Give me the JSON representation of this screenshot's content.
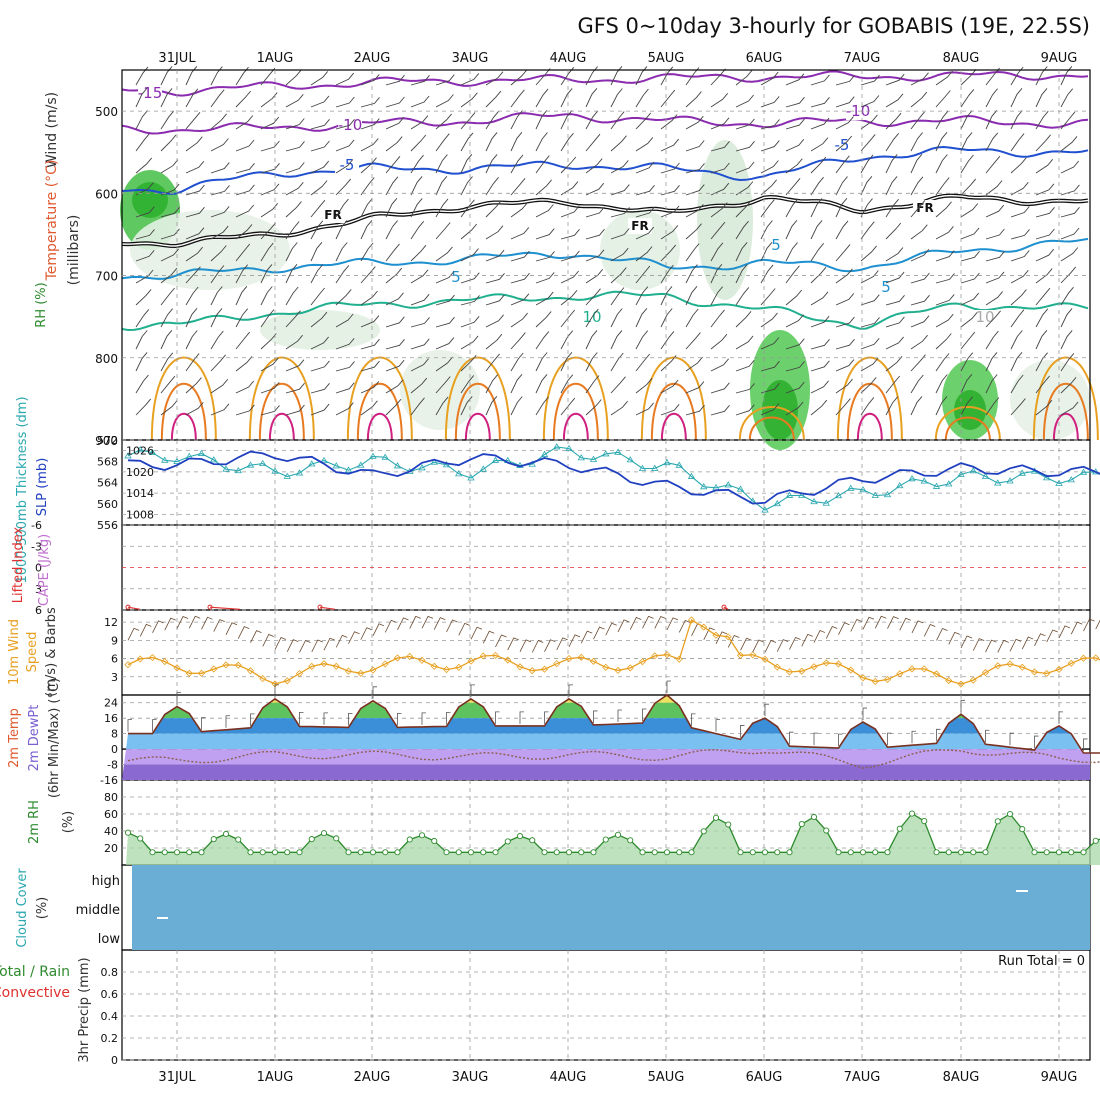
{
  "title": "GFS 0~10day 3-hourly for GOBABIS (19E, 22.5S)",
  "dates": [
    "31JUL",
    "1AUG",
    "2AUG",
    "3AUG",
    "4AUG",
    "5AUG",
    "6AUG",
    "7AUG",
    "8AUG",
    "9AUG"
  ],
  "panels": {
    "upper": {
      "labels": [
        "RH (%)",
        "Temperature (°C)",
        "Wind (m/s)"
      ],
      "label_colors": [
        "#2e8b2e",
        "#e05a30",
        "#333333"
      ],
      "ylabel": "(millibars)",
      "ticks": [
        "500",
        "600",
        "700",
        "800",
        "900"
      ],
      "contour_labels": [
        "-15",
        "-10",
        "-10",
        "-5",
        "-5",
        "FR",
        "FR",
        "FR",
        "5",
        "5",
        "5",
        "10",
        "10"
      ]
    },
    "slp": {
      "labels": [
        "1000-500mb Thickness (dm)",
        "SLP (mb)"
      ],
      "label_colors": [
        "#2aa8b0",
        "#2040c0"
      ],
      "left_ticks": [
        "572",
        "568",
        "564",
        "560",
        "556"
      ],
      "right_ticks": [
        "1026",
        "1020",
        "1014",
        "1008"
      ]
    },
    "stability": {
      "labels": [
        "Lifted Index",
        "CAPE (J/kg)"
      ],
      "label_colors": [
        "#e03030",
        "#c070d0"
      ],
      "ticks": [
        "-6",
        "-3",
        "0",
        "3",
        "6"
      ]
    },
    "wind10m": {
      "labels": [
        "10m Wind",
        "Speed",
        "(m/s) & Barbs"
      ],
      "label_colors": [
        "#e8a020",
        "#e8a020",
        "#333333"
      ],
      "ticks": [
        "12",
        "9",
        "6",
        "3"
      ]
    },
    "temp2m": {
      "labels": [
        "2m Temp",
        "2m DewPt",
        "(6hr Min/Max) (°C)"
      ],
      "label_colors": [
        "#e05a30",
        "#7a5fd0",
        "#333333"
      ],
      "ticks": [
        "24",
        "16",
        "8",
        "0",
        "-8",
        "-16"
      ]
    },
    "rh2m": {
      "labels": [
        "2m RH",
        "(%)"
      ],
      "label_colors": [
        "#2e8b2e",
        "#333333"
      ],
      "ticks": [
        "80",
        "60",
        "40",
        "20"
      ]
    },
    "cloud": {
      "labels": [
        "Cloud Cover",
        "(%)"
      ],
      "label_colors": [
        "#2aa8b0",
        "#333333"
      ],
      "ticks": [
        "high",
        "middle",
        "low"
      ]
    },
    "precip": {
      "labels": [
        "Total / Rain",
        "Convective",
        "3hr Precip (mm)"
      ],
      "label_colors": [
        "#2e8b2e",
        "#e03030",
        "#333333"
      ],
      "ticks": [
        "0.8",
        "0.6",
        "0.4",
        "0.2",
        "0"
      ],
      "run_total": "Run Total = 0"
    }
  },
  "chart_data": [
    {
      "type": "line",
      "name": "upper-air cross section",
      "x": [
        "31JUL",
        "1AUG",
        "2AUG",
        "3AUG",
        "4AUG",
        "5AUG",
        "6AUG",
        "7AUG",
        "8AUG",
        "9AUG"
      ],
      "ylim": [
        450,
        900
      ],
      "series": [
        {
          "label": "-15",
          "color": "#8a2bb0",
          "values": [
            475,
            470,
            465,
            463,
            462,
            460,
            458,
            458,
            457,
            456
          ]
        },
        {
          "label": "-10",
          "color": "#8a2bb0",
          "values": [
            522,
            520,
            515,
            512,
            505,
            512,
            515,
            512,
            512,
            515
          ]
        },
        {
          "label": "-5",
          "color": "#2050d0",
          "values": [
            595,
            575,
            570,
            570,
            565,
            570,
            580,
            555,
            548,
            550
          ]
        },
        {
          "label": "FR",
          "color": "#111111",
          "values": [
            660,
            650,
            630,
            615,
            610,
            625,
            605,
            620,
            605,
            610
          ]
        },
        {
          "label": "5",
          "color": "#1e90d0",
          "values": [
            700,
            690,
            685,
            680,
            672,
            690,
            685,
            690,
            670,
            660
          ]
        },
        {
          "label": "10",
          "color": "#20b090",
          "values": [
            760,
            745,
            735,
            730,
            725,
            725,
            742,
            760,
            735,
            740
          ]
        }
      ]
    },
    {
      "type": "line",
      "name": "thickness and SLP",
      "x": [
        "31JUL",
        "1AUG",
        "2AUG",
        "3AUG",
        "4AUG",
        "5AUG",
        "6AUG",
        "7AUG",
        "8AUG",
        "9AUG"
      ],
      "series": [
        {
          "label": "1000-500mb Thickness (dm)",
          "color": "#2aa8b0",
          "axis": "left",
          "values": [
            569,
            566,
            568,
            566,
            570,
            567,
            560,
            562,
            565,
            565
          ]
        },
        {
          "label": "SLP (mb)",
          "color": "#2040c0",
          "axis": "right",
          "values": [
            1022,
            1025,
            1019,
            1024,
            1022,
            1016,
            1012,
            1018,
            1021,
            1020
          ]
        }
      ],
      "ylim_left": [
        556,
        572
      ],
      "ylim_right": [
        1005,
        1029
      ]
    },
    {
      "type": "line",
      "name": "lifted index",
      "x": [
        "31JUL",
        "1AUG",
        "2AUG",
        "4AUG",
        "5AUG"
      ],
      "values": [
        5.5,
        5.7,
        6.0,
        6.0,
        5.5
      ],
      "ylim": [
        -6,
        6
      ]
    },
    {
      "type": "line",
      "name": "10m wind speed",
      "x": [
        "31JUL",
        "1AUG",
        "2AUG",
        "3AUG",
        "4AUG",
        "5AUG",
        "6AUG",
        "7AUG",
        "8AUG",
        "9AUG"
      ],
      "values": [
        5.0,
        3.0,
        5.0,
        5.5,
        5.0,
        5.5,
        5.5,
        3.5,
        3.0,
        5.0
      ],
      "ylim": [
        0,
        14
      ]
    },
    {
      "type": "area",
      "name": "2m temperature and dew point",
      "x": [
        "31JUL",
        "1AUG",
        "2AUG",
        "3AUG",
        "4AUG",
        "5AUG",
        "6AUG",
        "7AUG",
        "8AUG",
        "9AUG"
      ],
      "series": [
        {
          "label": "2m Temp",
          "color": "#7a3020",
          "values": [
            18,
            22,
            21,
            22,
            22,
            24,
            12,
            10,
            14,
            8
          ]
        },
        {
          "label": "2m DewPt",
          "color": "#8a6050",
          "values": [
            -6,
            -3,
            -3,
            -4,
            -3,
            -4,
            0,
            -8,
            0,
            -5
          ]
        }
      ],
      "ylim": [
        -16,
        28
      ]
    },
    {
      "type": "area",
      "name": "2m relative humidity",
      "x": [
        "31JUL",
        "1AUG",
        "2AUG",
        "3AUG",
        "4AUG",
        "5AUG",
        "6AUG",
        "7AUG",
        "8AUG",
        "9AUG"
      ],
      "values": [
        38,
        35,
        40,
        30,
        38,
        33,
        78,
        35,
        86,
        34
      ],
      "ylim": [
        0,
        100
      ]
    },
    {
      "type": "bar",
      "name": "cloud cover",
      "x": [
        "31JUL",
        "1AUG",
        "2AUG",
        "3AUG",
        "4AUG",
        "5AUG",
        "6AUG",
        "7AUG",
        "8AUG",
        "9AUG"
      ],
      "values": [
        0,
        0,
        0,
        0,
        0,
        0,
        0,
        0,
        0,
        0
      ]
    },
    {
      "type": "bar",
      "name": "3hr precipitation",
      "x": [
        "31JUL",
        "1AUG",
        "2AUG",
        "3AUG",
        "4AUG",
        "5AUG",
        "6AUG",
        "7AUG",
        "8AUG",
        "9AUG"
      ],
      "values": [
        0,
        0,
        0,
        0,
        0,
        0,
        0,
        0,
        0,
        0
      ],
      "ylim": [
        0,
        1.0
      ]
    }
  ]
}
